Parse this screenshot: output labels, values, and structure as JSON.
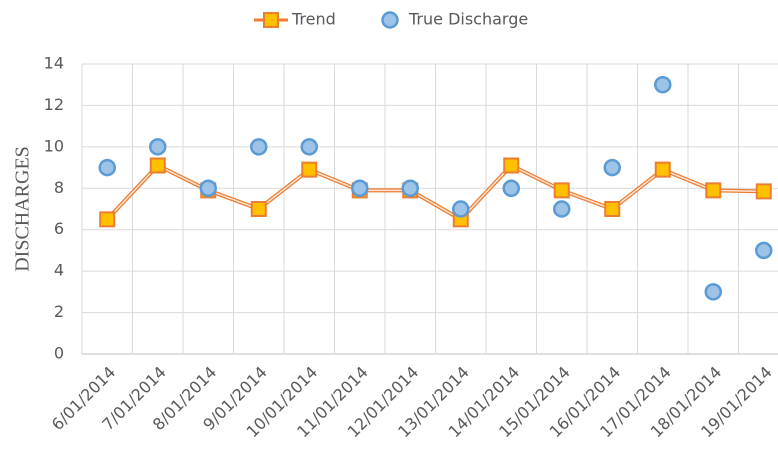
{
  "chart_data": {
    "type": "line",
    "y_label": "DISCHARGES",
    "categories": [
      "6/01/2014",
      "7/01/2014",
      "8/01/2014",
      "9/01/2014",
      "10/01/2014",
      "11/01/2014",
      "12/01/2014",
      "13/01/2014",
      "14/01/2014",
      "15/01/2014",
      "16/01/2014",
      "17/01/2014",
      "18/01/2014",
      "19/01/2014"
    ],
    "series": [
      {
        "name": "Trend",
        "color": "#ed7d31",
        "marker_color": "#ffc000",
        "values": [
          6.5,
          9.1,
          7.9,
          7.0,
          8.9,
          7.9,
          7.9,
          6.5,
          9.1,
          7.9,
          7.0,
          8.9,
          7.9,
          7.85
        ]
      },
      {
        "name": "True Discharge",
        "color": "#5b9bd5",
        "marker_color": "#9dc3e6",
        "values": [
          9,
          10,
          8,
          10,
          10,
          8,
          8,
          7,
          8,
          7,
          9,
          13,
          3,
          5
        ]
      }
    ],
    "ylim": [
      0,
      14
    ],
    "yticks": [
      0,
      2,
      4,
      6,
      8,
      10,
      12,
      14
    ],
    "grid": true,
    "legend": "top"
  }
}
